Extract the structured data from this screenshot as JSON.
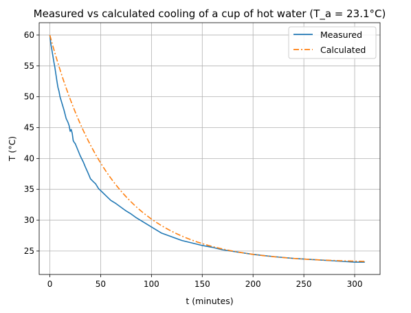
{
  "chart_data": {
    "type": "line",
    "title": "Measured vs calculated cooling of a cup of hot water (T_a = 23.1°C)",
    "xlabel": "t (minutes)",
    "ylabel": "T (°C)",
    "xlim": [
      -10.5,
      325
    ],
    "ylim": [
      21.2,
      62
    ],
    "xticks": [
      0,
      50,
      100,
      150,
      200,
      250,
      300
    ],
    "yticks": [
      25,
      30,
      35,
      40,
      45,
      50,
      55,
      60
    ],
    "grid": true,
    "legend_position": "top-right",
    "series": [
      {
        "name": "Measured",
        "color": "#1f77b4",
        "style": "solid",
        "x": [
          0,
          1,
          2,
          3,
          4,
          5,
          6,
          7,
          8,
          9,
          10,
          12,
          14,
          16,
          18,
          19,
          20,
          21,
          22,
          23,
          24,
          25,
          27,
          30,
          33,
          35,
          38,
          40,
          43,
          45,
          48,
          50,
          55,
          60,
          65,
          70,
          75,
          80,
          85,
          90,
          95,
          100,
          110,
          120,
          130,
          140,
          150,
          160,
          170,
          180,
          200,
          220,
          240,
          260,
          280,
          300,
          310
        ],
        "y": [
          60,
          58.5,
          57.6,
          56.6,
          55.6,
          54.7,
          53.6,
          52.5,
          51.5,
          50.9,
          50.0,
          48.9,
          47.8,
          46.5,
          45.8,
          45.3,
          44.4,
          44.7,
          44.1,
          42.9,
          42.6,
          42.4,
          41.6,
          40.4,
          39.4,
          38.6,
          37.5,
          36.7,
          36.2,
          35.9,
          35.1,
          34.8,
          34.0,
          33.2,
          32.7,
          32.1,
          31.5,
          31.0,
          30.4,
          29.9,
          29.4,
          28.9,
          27.9,
          27.3,
          26.7,
          26.3,
          25.9,
          25.6,
          25.2,
          24.95,
          24.45,
          24.1,
          23.8,
          23.6,
          23.4,
          23.2,
          23.2
        ]
      },
      {
        "name": "Calculated",
        "color": "#ff7f0e",
        "style": "dashdot",
        "ambient": 23.1,
        "initial": 60,
        "rate_per_min": 0.0165
      }
    ]
  }
}
